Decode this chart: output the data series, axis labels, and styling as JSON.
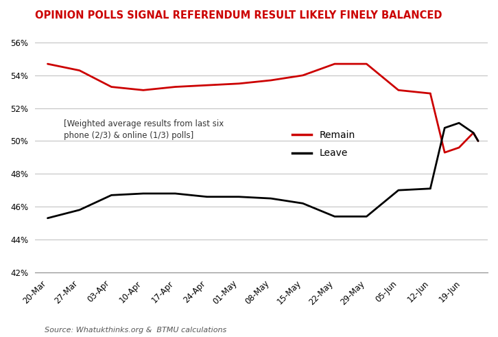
{
  "title": "OPINION POLLS SIGNAL REFERENDUM RESULT LIKELY FINELY BALANCED",
  "title_color": "#cc0000",
  "source_text": "Source: Whatukthinks.org &  BTMU calculations",
  "annotation": "[Weighted average results from last six\nphone (2/3) & online (1/3) polls]",
  "x_labels": [
    "20-Mar",
    "27-Mar",
    "03-Apr",
    "10-Apr",
    "17-Apr",
    "24-Apr",
    "01-May",
    "08-May",
    "15-May",
    "22-May",
    "29-May",
    "05-Jun",
    "12-Jun",
    "19-Jun"
  ],
  "remain_x": [
    0,
    1,
    2,
    3,
    4,
    5,
    6,
    7,
    8,
    9,
    10,
    11,
    12
  ],
  "remain_y": [
    54.7,
    54.3,
    53.3,
    53.1,
    53.3,
    53.4,
    53.5,
    53.7,
    54.0,
    54.7,
    54.7,
    53.1,
    52.9
  ],
  "leave_x": [
    0,
    1,
    2,
    3,
    4,
    5,
    6,
    7,
    8,
    9,
    10,
    11,
    12
  ],
  "leave_y": [
    45.3,
    45.8,
    46.7,
    46.8,
    46.8,
    46.6,
    46.6,
    46.5,
    46.2,
    45.4,
    45.4,
    47.0,
    47.1
  ],
  "remain_diamond_x": [
    12,
    12.45,
    12.9,
    13.35,
    13.5
  ],
  "remain_diamond_y": [
    52.9,
    49.3,
    49.6,
    50.5,
    50.0
  ],
  "leave_diamond_x": [
    12,
    12.45,
    12.9,
    13.35,
    13.5
  ],
  "leave_diamond_y": [
    47.1,
    50.8,
    51.1,
    50.5,
    50.0
  ],
  "remain_color": "#cc0000",
  "leave_color": "#000000",
  "remain_label": "Remain",
  "leave_label": "Leave",
  "ylim": [
    42,
    57
  ],
  "yticks": [
    42,
    44,
    46,
    48,
    50,
    52,
    54,
    56
  ],
  "background_color": "#ffffff",
  "grid_color": "#bbbbbb",
  "line_width": 2.0,
  "title_fontsize": 10.5,
  "tick_fontsize": 8.5,
  "annotation_fontsize": 8.5,
  "legend_fontsize": 10,
  "source_fontsize": 8
}
